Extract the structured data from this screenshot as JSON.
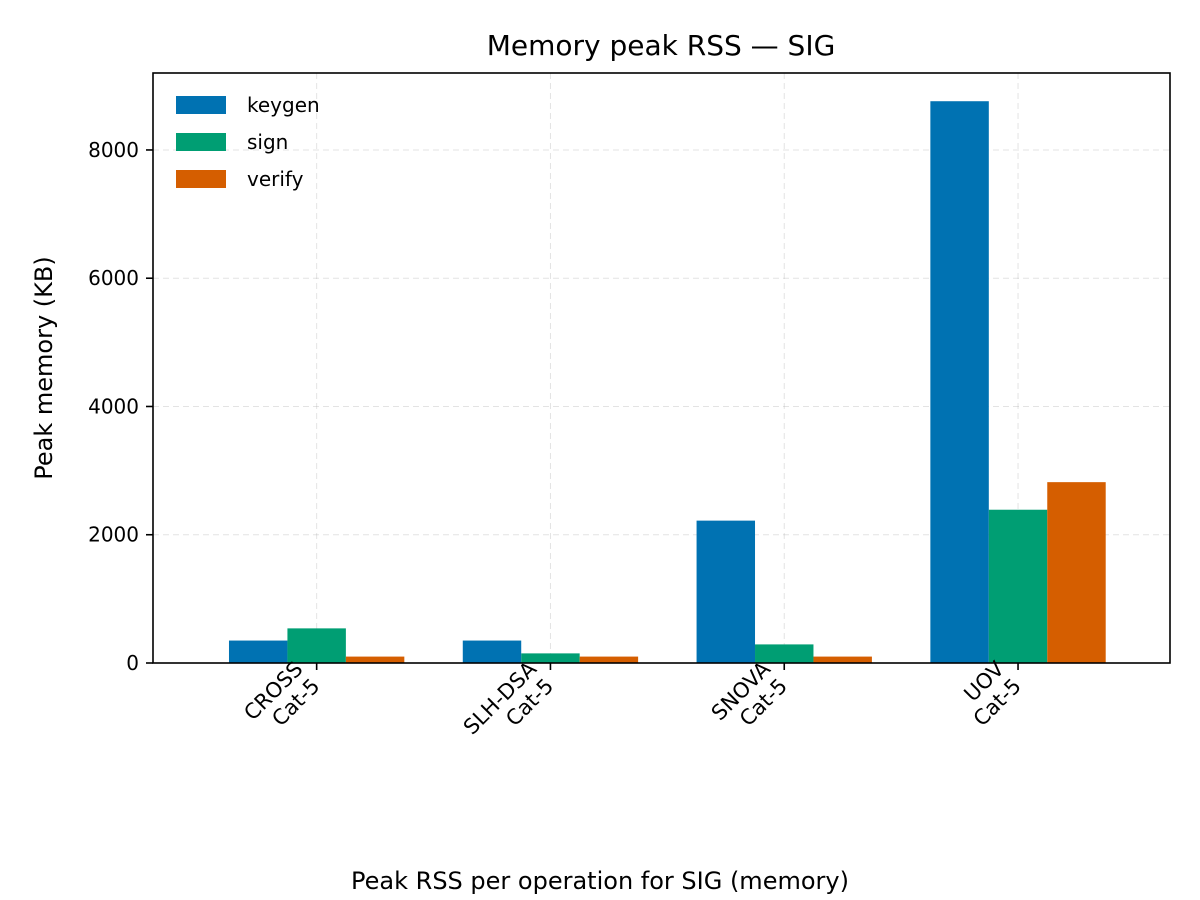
{
  "chart_data": {
    "type": "bar",
    "title": "Memory peak RSS — SIG",
    "xlabel": "",
    "ylabel": "Peak memory (KB)",
    "caption": "Peak RSS per operation for SIG (memory)",
    "categories": [
      [
        "CROSS",
        "Cat-5"
      ],
      [
        "SLH-DSA",
        "Cat-5"
      ],
      [
        "SNOVA",
        "Cat-5"
      ],
      [
        "UOV",
        "Cat-5"
      ]
    ],
    "series": [
      {
        "name": "keygen",
        "color": "#0072b2",
        "values": [
          350,
          350,
          2220,
          8760
        ]
      },
      {
        "name": "sign",
        "color": "#009e73",
        "values": [
          540,
          150,
          290,
          2390
        ]
      },
      {
        "name": "verify",
        "color": "#d55e00",
        "values": [
          100,
          100,
          100,
          2820
        ]
      }
    ],
    "ylim": [
      0,
      9200
    ],
    "yticks": [
      0,
      2000,
      4000,
      6000,
      8000
    ],
    "grid": true,
    "legend_position": "top-left"
  }
}
